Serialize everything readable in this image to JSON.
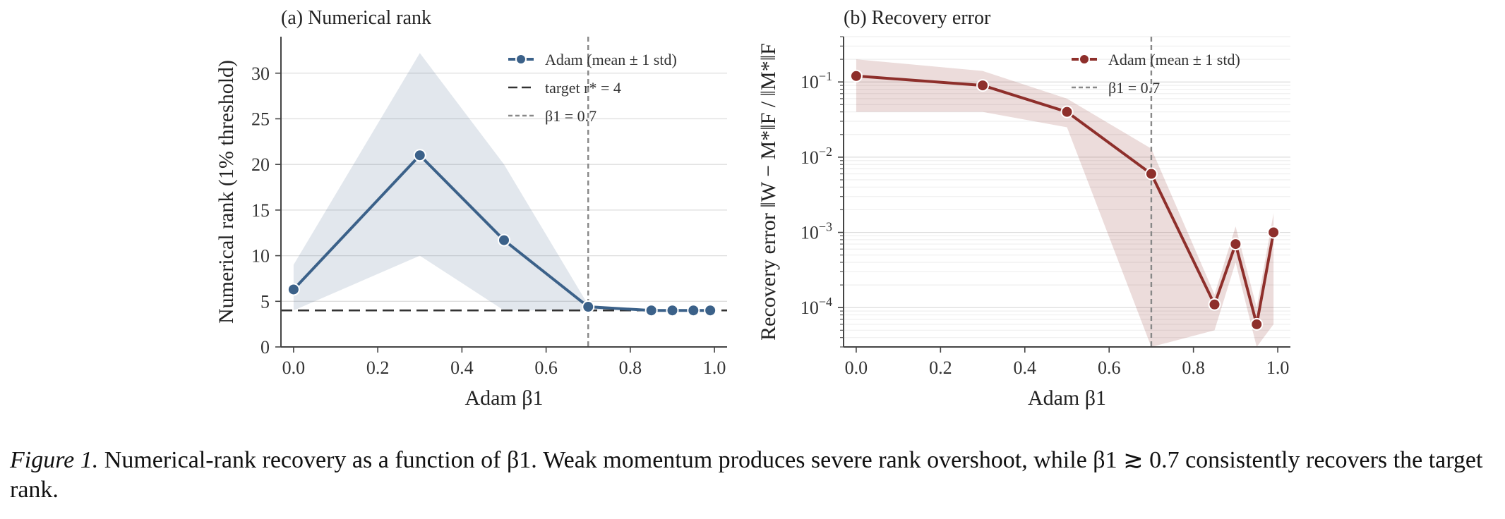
{
  "chart_data": [
    {
      "type": "line",
      "title": "(a)  Numerical rank",
      "xlabel": "Adam β1",
      "ylabel": "Numerical rank (1% threshold)",
      "xlim": [
        -0.03,
        1.03
      ],
      "ylim": [
        0,
        34
      ],
      "xticks": [
        0.0,
        0.2,
        0.4,
        0.6,
        0.8,
        1.0
      ],
      "xtick_labels": [
        "0.0",
        "0.2",
        "0.4",
        "0.6",
        "0.8",
        "1.0"
      ],
      "yticks": [
        0,
        5,
        10,
        15,
        20,
        25,
        30
      ],
      "ytick_labels": [
        "0",
        "5",
        "10",
        "15",
        "20",
        "25",
        "30"
      ],
      "grid": "horizontal",
      "legend_position": "top-right",
      "series": [
        {
          "name": "Adam (mean ± 1 std)",
          "color": "#3b6189",
          "x": [
            0.0,
            0.3,
            0.5,
            0.7,
            0.85,
            0.9,
            0.95,
            0.99
          ],
          "y": [
            6.3,
            21.0,
            11.7,
            4.4,
            4.0,
            4.0,
            4.0,
            4.0
          ],
          "band_lower": [
            4.0,
            10.0,
            4.0,
            4.0,
            4.0,
            4.0,
            4.0,
            4.0
          ],
          "band_upper": [
            9.0,
            32.2,
            20.0,
            4.6,
            4.0,
            4.0,
            4.0,
            4.0
          ]
        }
      ],
      "reference_lines": [
        {
          "name": "target r* = 4",
          "orientation": "horizontal",
          "value": 4,
          "style": "dashed",
          "color": "#333333"
        },
        {
          "name": "β1 = 0.7",
          "orientation": "vertical",
          "value": 0.7,
          "style": "dotted",
          "color": "#888888"
        }
      ],
      "legend": [
        {
          "label": "Adam (mean ± 1 std)",
          "kind": "series"
        },
        {
          "label": "target r* = 4",
          "kind": "dashed"
        },
        {
          "label": "β1 = 0.7",
          "kind": "dotted"
        }
      ]
    },
    {
      "type": "line",
      "title": "(b)  Recovery error",
      "xlabel": "Adam β1",
      "ylabel": "Recovery error ‖W − M*‖F / ‖M*‖F",
      "scale_y": "log",
      "xlim": [
        -0.03,
        1.03
      ],
      "ylim": [
        3e-05,
        0.4
      ],
      "xticks": [
        0.0,
        0.2,
        0.4,
        0.6,
        0.8,
        1.0
      ],
      "xtick_labels": [
        "0.0",
        "0.2",
        "0.4",
        "0.6",
        "0.8",
        "1.0"
      ],
      "yticks": [
        0.1,
        0.01,
        0.001,
        0.0001
      ],
      "ytick_labels": [
        "10⁻¹",
        "10⁻²",
        "10⁻³",
        "10⁻⁴"
      ],
      "grid": "horizontal-minor",
      "legend_position": "top-right",
      "series": [
        {
          "name": "Adam (mean ± 1 std)",
          "color": "#8e2f2b",
          "x": [
            0.0,
            0.3,
            0.5,
            0.7,
            0.85,
            0.9,
            0.95,
            0.99
          ],
          "y": [
            0.12,
            0.09,
            0.04,
            0.006,
            0.00011,
            0.0007,
            6e-05,
            0.001
          ],
          "band_lower": [
            0.04,
            0.04,
            0.025,
            3e-05,
            5e-05,
            0.0004,
            3e-05,
            6e-05
          ],
          "band_upper": [
            0.2,
            0.14,
            0.06,
            0.013,
            0.00015,
            0.0012,
            0.0001,
            0.0018
          ]
        }
      ],
      "reference_lines": [
        {
          "name": "β1 = 0.7",
          "orientation": "vertical",
          "value": 0.7,
          "style": "dotted",
          "color": "#888888"
        }
      ],
      "legend": [
        {
          "label": "Adam (mean ± 1 std)",
          "kind": "series"
        },
        {
          "label": "β1 = 0.7",
          "kind": "dotted"
        }
      ]
    }
  ],
  "caption": {
    "label": "Figure 1.",
    "text": " Numerical-rank recovery as a function of β1. Weak momentum produces severe rank overshoot, while β1 ≳ 0.7 consistently recovers the target rank."
  }
}
